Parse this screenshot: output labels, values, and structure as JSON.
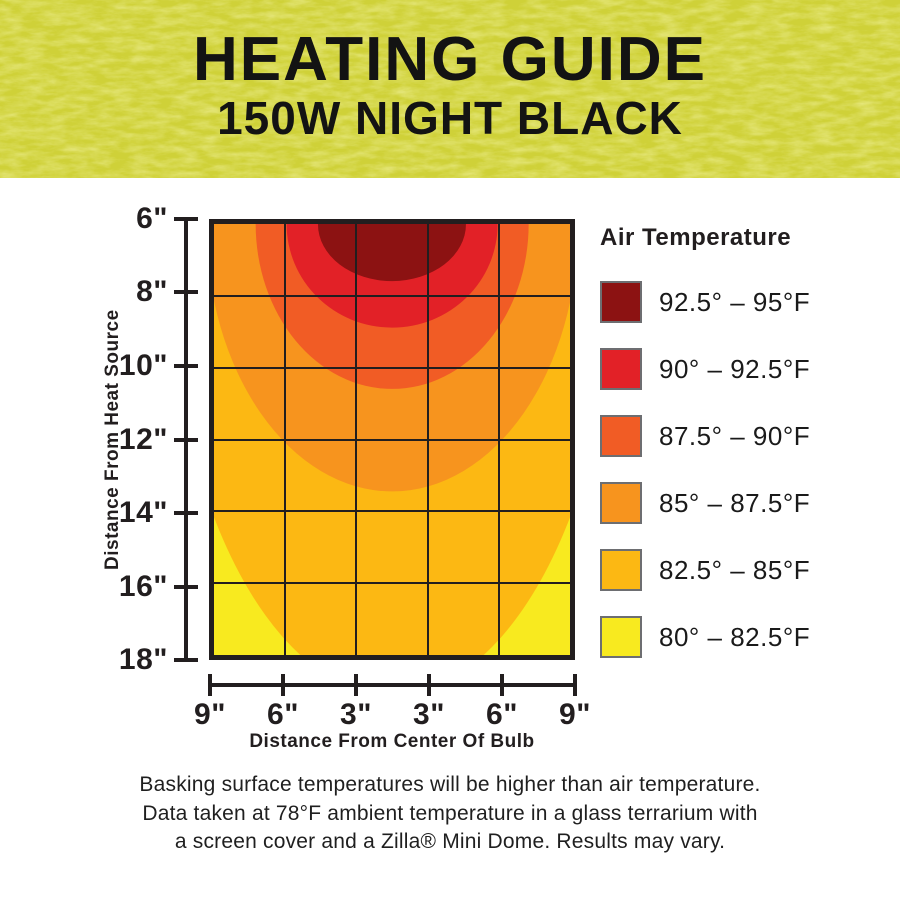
{
  "header": {
    "title": "HEATING GUIDE",
    "subtitle": "150W NIGHT BLACK",
    "background_color": "#cfd138",
    "text_color": "#131313"
  },
  "chart_data": {
    "type": "heatmap",
    "subtype": "contour-temperature-zones",
    "xlabel": "Distance From Center Of Bulb",
    "ylabel": "Distance From Heat Source",
    "x_tick_labels": [
      "9\"",
      "6\"",
      "3\"",
      "3\"",
      "6\"",
      "9\""
    ],
    "y_tick_labels": [
      "6\"",
      "8\"",
      "10\"",
      "12\"",
      "14\"",
      "16\"",
      "18\""
    ],
    "y_range_inches": [
      6,
      18
    ],
    "x_range_inches_from_center": [
      -9,
      9
    ],
    "grid": true,
    "gridline_color": "#221e1f",
    "hotspot": "top-center",
    "legend_title": "Air Temperature",
    "legend_position": "right",
    "bands": [
      {
        "label": "92.5° – 95°F",
        "min_f": 92.5,
        "max_f": 95,
        "color": "#8c1212",
        "rx_pct": 20.8,
        "ry_pct": 13.2
      },
      {
        "label": "90° – 92.5°F",
        "min_f": 90,
        "max_f": 92.5,
        "color": "#e22127",
        "rx_pct": 29.6,
        "ry_pct": 24.0
      },
      {
        "label": "87.5° – 90°F",
        "min_f": 87.5,
        "max_f": 90,
        "color": "#f15c25",
        "rx_pct": 38.3,
        "ry_pct": 38.3
      },
      {
        "label": "85° – 87.5°F",
        "min_f": 85,
        "max_f": 87.5,
        "color": "#f7941e",
        "rx_pct": 52.2,
        "ry_pct": 62.1
      },
      {
        "label": "82.5° – 85°F",
        "min_f": 82.5,
        "max_f": 85,
        "color": "#fcb813",
        "rx_pct": 63.9,
        "ry_pct": 109.3
      },
      {
        "label": "80° – 82.5°F",
        "min_f": 80,
        "max_f": 82.5,
        "color": "#f8ea1f",
        "base": true
      }
    ]
  },
  "footer": {
    "lines": [
      "Basking surface temperatures will be higher than air temperature.",
      "Data taken at 78°F ambient temperature in a glass terrarium with",
      "a screen cover and a Zilla® Mini Dome. Results may vary."
    ]
  }
}
